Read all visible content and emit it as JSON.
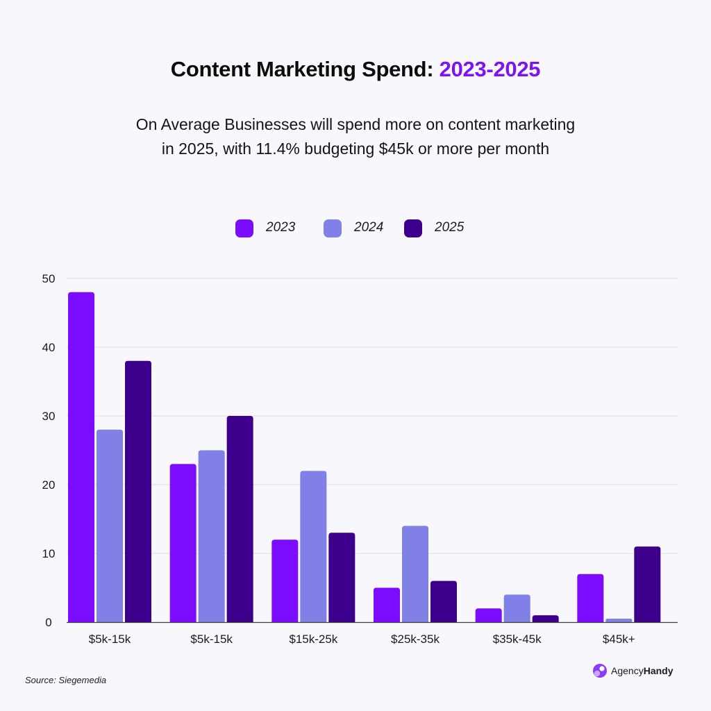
{
  "header": {
    "title_main": "Content Marketing Spend:",
    "title_accent": "2023-2025",
    "subtitle_line1": "On Average Businesses will spend more on content marketing",
    "subtitle_line2": "in 2025, with 11.4% budgeting $45k or more per month"
  },
  "legend": [
    {
      "label": "2023",
      "color": "#7b0cff"
    },
    {
      "label": "2024",
      "color": "#8080e6"
    },
    {
      "label": "2025",
      "color": "#3c008c"
    }
  ],
  "colors": {
    "accent": "#7b14f5",
    "grid": "#dddde6",
    "axis": "#3a3a3a"
  },
  "chart_data": {
    "type": "bar",
    "title": "",
    "xlabel": "",
    "ylabel": "",
    "ylim": [
      0,
      50
    ],
    "yticks": [
      0,
      10,
      20,
      30,
      40,
      50
    ],
    "grid": true,
    "legend_position": "top-center",
    "categories": [
      "$5k-15k",
      "$5k-15k",
      "$15k-25k",
      "$25k-35k",
      "$35k-45k",
      "$45k+"
    ],
    "series": [
      {
        "name": "2023",
        "color": "#7b0cff",
        "values": [
          48,
          23,
          12,
          5,
          2,
          7
        ]
      },
      {
        "name": "2024",
        "color": "#8080e6",
        "values": [
          28,
          25,
          22,
          14,
          4,
          0.5
        ]
      },
      {
        "name": "2025",
        "color": "#3c008c",
        "values": [
          38,
          30,
          13,
          6,
          1,
          11
        ]
      }
    ]
  },
  "footer": {
    "source": "Source: Siegemedia",
    "brand_name_regular": "Agency",
    "brand_name_bold": "Handy"
  }
}
